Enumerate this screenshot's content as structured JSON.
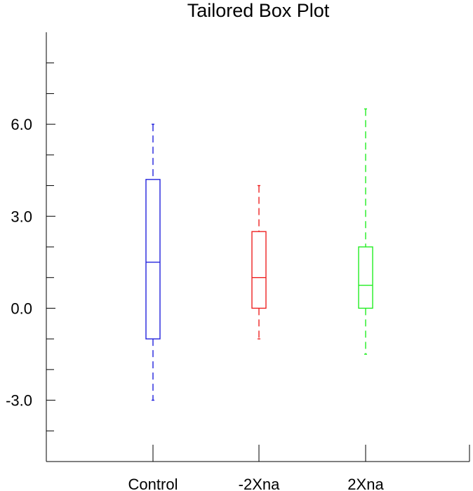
{
  "chart_data": {
    "type": "box",
    "title": "Tailored Box Plot",
    "xlabel": "",
    "ylabel": "",
    "ylim": [
      -5.0,
      9.0
    ],
    "y_ticks_major": [
      -3.0,
      0.0,
      3.0,
      6.0
    ],
    "y_tick_labels": [
      "-3.0",
      "0.0",
      "3.0",
      "6.0"
    ],
    "y_ticks_minor": [
      -4.0,
      -2.0,
      -1.0,
      1.0,
      2.0,
      4.0,
      5.0,
      7.0,
      8.0
    ],
    "categories": [
      "Control",
      "-2Xna",
      "2Xna"
    ],
    "grid": false,
    "series": [
      {
        "category": "Control",
        "min": -3.0,
        "q1": -1.0,
        "median": 1.5,
        "q3": 4.2,
        "max": 6.0,
        "color": "#2222dd"
      },
      {
        "category": "-2Xna",
        "min": -1.0,
        "q1": 0.0,
        "median": 1.0,
        "q3": 2.5,
        "max": 4.0,
        "color": "#ee2222"
      },
      {
        "category": "2Xna",
        "min": -1.5,
        "q1": 0.0,
        "median": 0.75,
        "q3": 2.0,
        "max": 6.5,
        "color": "#22ee22"
      }
    ]
  }
}
